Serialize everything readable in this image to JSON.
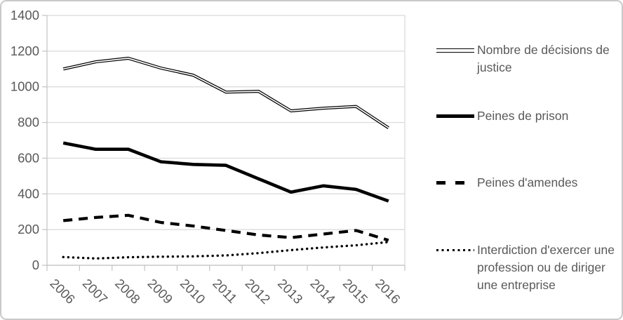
{
  "chart_data": {
    "type": "line",
    "x": [
      2006,
      2007,
      2008,
      2009,
      2010,
      2011,
      2012,
      2013,
      2014,
      2015,
      2016
    ],
    "series": [
      {
        "name": "Nombre de décisions de justice",
        "style": "double",
        "values": [
          1100,
          1140,
          1160,
          1105,
          1065,
          970,
          975,
          865,
          880,
          890,
          770
        ]
      },
      {
        "name": "Peines de prison",
        "style": "solid",
        "values": [
          685,
          650,
          650,
          580,
          565,
          560,
          485,
          410,
          445,
          425,
          360
        ]
      },
      {
        "name": "Peines d'amendes",
        "style": "dashed",
        "values": [
          250,
          268,
          280,
          240,
          220,
          195,
          170,
          155,
          175,
          195,
          140
        ]
      },
      {
        "name": "Interdiction d'exercer une profession ou de diriger une entreprise",
        "style": "dotted",
        "values": [
          46,
          38,
          45,
          48,
          50,
          55,
          68,
          85,
          100,
          112,
          130
        ]
      }
    ],
    "title": "",
    "xlabel": "",
    "ylabel": "",
    "ylim": [
      0,
      1400
    ],
    "ytick_step": 200,
    "grid": "horizontal",
    "legend_position": "right",
    "x_label_rotation_deg": 45
  },
  "legend": {
    "items": [
      {
        "label": "Nombre de décisions de justice"
      },
      {
        "label": "Peines de prison"
      },
      {
        "label": "Peines d'amendes"
      },
      {
        "label": "Interdiction d'exercer une profession ou de diriger une entreprise"
      }
    ]
  },
  "colors": {
    "line": "#000000",
    "gridline": "#d9d9d9",
    "axis": "#c3c3c3",
    "tick_text": "#595959",
    "legend_text": "#595959",
    "background": "#ffffff",
    "border": "#c9c9c9"
  }
}
